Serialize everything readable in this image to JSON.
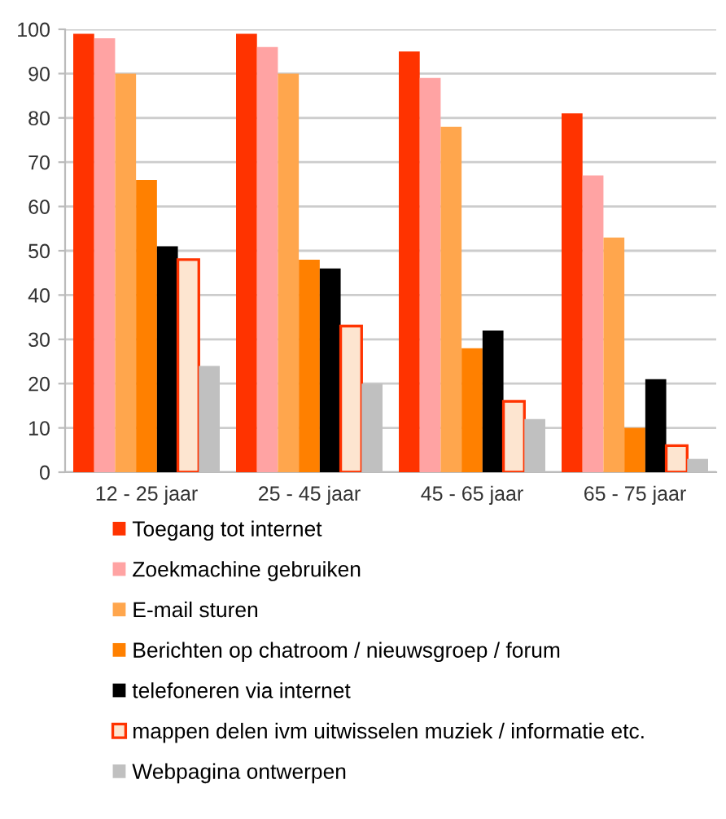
{
  "chart_data": {
    "type": "bar",
    "categories": [
      "12 - 25 jaar",
      "25 - 45 jaar",
      "45 - 65 jaar",
      "65 - 75 jaar"
    ],
    "series": [
      {
        "name": "Toegang tot internet",
        "color": "#ff3300",
        "values": [
          99,
          99,
          95,
          81
        ]
      },
      {
        "name": "Zoekmachine gebruiken",
        "color": "#ffa3a3",
        "values": [
          98,
          96,
          89,
          67
        ]
      },
      {
        "name": "E-mail sturen",
        "color": "#ffa64d",
        "values": [
          90,
          90,
          78,
          53
        ]
      },
      {
        "name": "Berichten op chatroom / nieuwsgroep / forum",
        "color": "#ff8000",
        "values": [
          66,
          48,
          28,
          10
        ]
      },
      {
        "name": "telefoneren via internet",
        "color": "#000000",
        "values": [
          51,
          46,
          32,
          21
        ]
      },
      {
        "name": "mappen delen ivm uitwisselen muziek / informatie etc.",
        "color": "#fde5d0",
        "values": [
          48,
          33,
          16,
          6
        ]
      },
      {
        "name": "Webpagina ontwerpen",
        "color": "#c0c0c0",
        "values": [
          24,
          20,
          12,
          3
        ]
      }
    ],
    "ylim": [
      0,
      100
    ],
    "yticks": [
      0,
      10,
      20,
      30,
      40,
      50,
      60,
      70,
      80,
      90,
      100
    ],
    "grid": "y",
    "legend": "bottom"
  }
}
